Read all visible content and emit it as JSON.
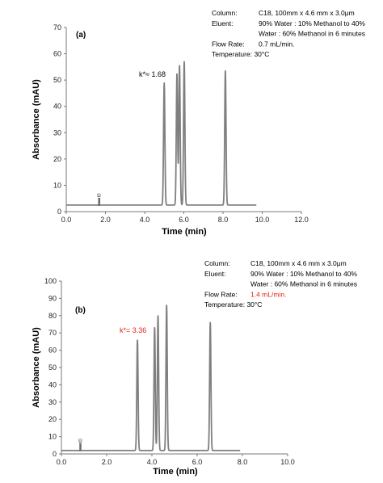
{
  "accent_red": "#e0241b",
  "trace_color": "#7f7f7f",
  "chart_data": [
    {
      "type": "line",
      "panel_label": "(a)",
      "xlabel": "Time (min)",
      "ylabel": "Absorbance (mAU)",
      "xlim": [
        0,
        12
      ],
      "ylim": [
        0,
        70
      ],
      "xticks": [
        "0.0",
        "2.0",
        "4.0",
        "6.0",
        "8.0",
        "10.0",
        "12.0"
      ],
      "yticks": [
        "0",
        "10",
        "20",
        "30",
        "40",
        "50",
        "60",
        "70"
      ],
      "grid": false,
      "baseline": 2.5,
      "trace_end": 9.7,
      "t0_marker": {
        "x": 1.68,
        "label": "t0"
      },
      "peaks": [
        {
          "x": 5.0,
          "height": 49
        },
        {
          "x": 5.65,
          "height": 52.5
        },
        {
          "x": 5.78,
          "height": 55.5
        },
        {
          "x": 6.02,
          "height": 57
        },
        {
          "x": 8.12,
          "height": 53.5
        }
      ],
      "annotation": {
        "text": "k*≈ 1.68",
        "highlight": false
      },
      "info": [
        {
          "label": "Column:",
          "lines": [
            "C18, 100mm x 4.6 mm x 3.0μm"
          ],
          "highlight": false
        },
        {
          "label": "Eluent:",
          "lines": [
            "90% Water : 10% Methanol to 40%",
            "Water : 60% Methanol in 6 minutes"
          ],
          "highlight": false
        },
        {
          "label": "Flow Rate:",
          "lines": [
            "0.7 mL/min."
          ],
          "highlight": false
        },
        {
          "label": "Temperature: 30°C",
          "lines": [],
          "highlight": false
        }
      ]
    },
    {
      "type": "line",
      "panel_label": "(b)",
      "xlabel": "Time (min)",
      "ylabel": "Absorbance (mAU)",
      "xlim": [
        0,
        10
      ],
      "ylim": [
        0,
        100
      ],
      "xticks": [
        "0.0",
        "2.0",
        "4.0",
        "6.0",
        "8.0",
        "10.0"
      ],
      "yticks": [
        "0",
        "10",
        "20",
        "30",
        "40",
        "50",
        "60",
        "70",
        "80",
        "90",
        "100"
      ],
      "grid": false,
      "baseline": 2.0,
      "trace_end": 7.9,
      "t0_marker": {
        "x": 0.84,
        "label": "t0"
      },
      "peaks": [
        {
          "x": 3.36,
          "height": 66
        },
        {
          "x": 4.12,
          "height": 73
        },
        {
          "x": 4.27,
          "height": 80
        },
        {
          "x": 4.65,
          "height": 86
        },
        {
          "x": 6.58,
          "height": 76
        }
      ],
      "annotation": {
        "text": "k*= 3.36",
        "highlight": true
      },
      "info": [
        {
          "label": "Column:",
          "lines": [
            "C18, 100mm x 4.6 mm x 3.0μm"
          ],
          "highlight": false
        },
        {
          "label": "Eluent:",
          "lines": [
            "90% Water : 10% Methanol to 40%",
            "Water : 60% Methanol in 6 minutes"
          ],
          "highlight": false
        },
        {
          "label": "Flow Rate:",
          "lines": [
            "1.4 mL/min."
          ],
          "highlight": true
        },
        {
          "label": "Temperature: 30°C",
          "lines": [],
          "highlight": false
        }
      ]
    }
  ]
}
